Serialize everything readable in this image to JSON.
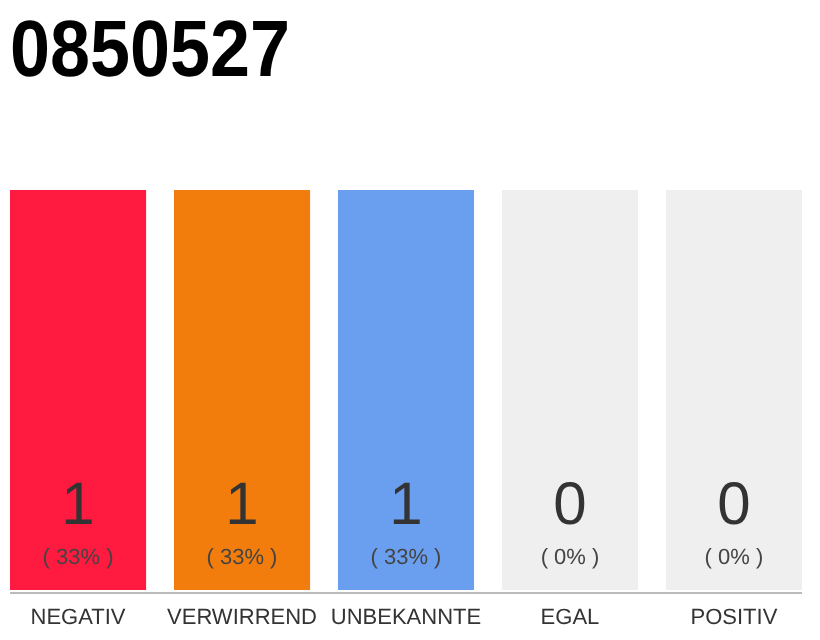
{
  "chart_data": {
    "type": "bar",
    "title": "0850527",
    "categories": [
      "NEGATIV",
      "VERWIRREND",
      "UNBEKANNTE",
      "EGAL",
      "POSITIV"
    ],
    "series": [
      {
        "values": [
          1,
          1,
          1,
          0,
          0
        ],
        "colors": [
          "#ff1a40",
          "#f27d0c",
          "#6a9ff0",
          "#efefef",
          "#efefef"
        ],
        "value_labels": [
          "1",
          "1",
          "1",
          "0",
          "0"
        ]
      },
      {
        "values": [
          0,
          0,
          0,
          1,
          1
        ],
        "color": "#efefef"
      }
    ],
    "ylim": [
      0,
      1
    ],
    "tick_labels": "x",
    "annotations": [
      "( 33% )",
      "( 33% )",
      "( 33% )",
      "( 0% )",
      "( 0% )"
    ]
  }
}
